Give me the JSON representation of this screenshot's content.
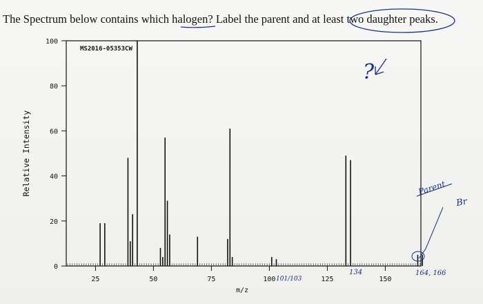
{
  "question": "The Spectrum below contains which halogen? Label the parent and at least two daughter peaks.",
  "handwriting": {
    "question_mark": "?",
    "parent": "Parent",
    "br": "Br",
    "near_100": "101/103",
    "near_134": "134",
    "near_164": "164, 166"
  },
  "colors": {
    "ink": "#111111",
    "pen": "#1a2f8a"
  },
  "chart_data": {
    "type": "bar",
    "spectrum_id": "MS2016-05353CW",
    "xlabel": "m/z",
    "ylabel": "Relative Intensity",
    "xlim": [
      10,
      167
    ],
    "ylim": [
      0,
      100
    ],
    "xticks": [
      25,
      50,
      75,
      100,
      125,
      150
    ],
    "yticks": [
      0,
      20,
      40,
      60,
      80,
      100
    ],
    "peaks": [
      {
        "mz": 27,
        "value": 19
      },
      {
        "mz": 29,
        "value": 19
      },
      {
        "mz": 39,
        "value": 48
      },
      {
        "mz": 40,
        "value": 11
      },
      {
        "mz": 41,
        "value": 23
      },
      {
        "mz": 43,
        "value": 100
      },
      {
        "mz": 53,
        "value": 8
      },
      {
        "mz": 54,
        "value": 4
      },
      {
        "mz": 55,
        "value": 57
      },
      {
        "mz": 56,
        "value": 29
      },
      {
        "mz": 57,
        "value": 14
      },
      {
        "mz": 69,
        "value": 13
      },
      {
        "mz": 82,
        "value": 12
      },
      {
        "mz": 83,
        "value": 61
      },
      {
        "mz": 84,
        "value": 4
      },
      {
        "mz": 101,
        "value": 4
      },
      {
        "mz": 103,
        "value": 3
      },
      {
        "mz": 133,
        "value": 49
      },
      {
        "mz": 135,
        "value": 47
      },
      {
        "mz": 164,
        "value": 5
      },
      {
        "mz": 166,
        "value": 5
      }
    ]
  }
}
